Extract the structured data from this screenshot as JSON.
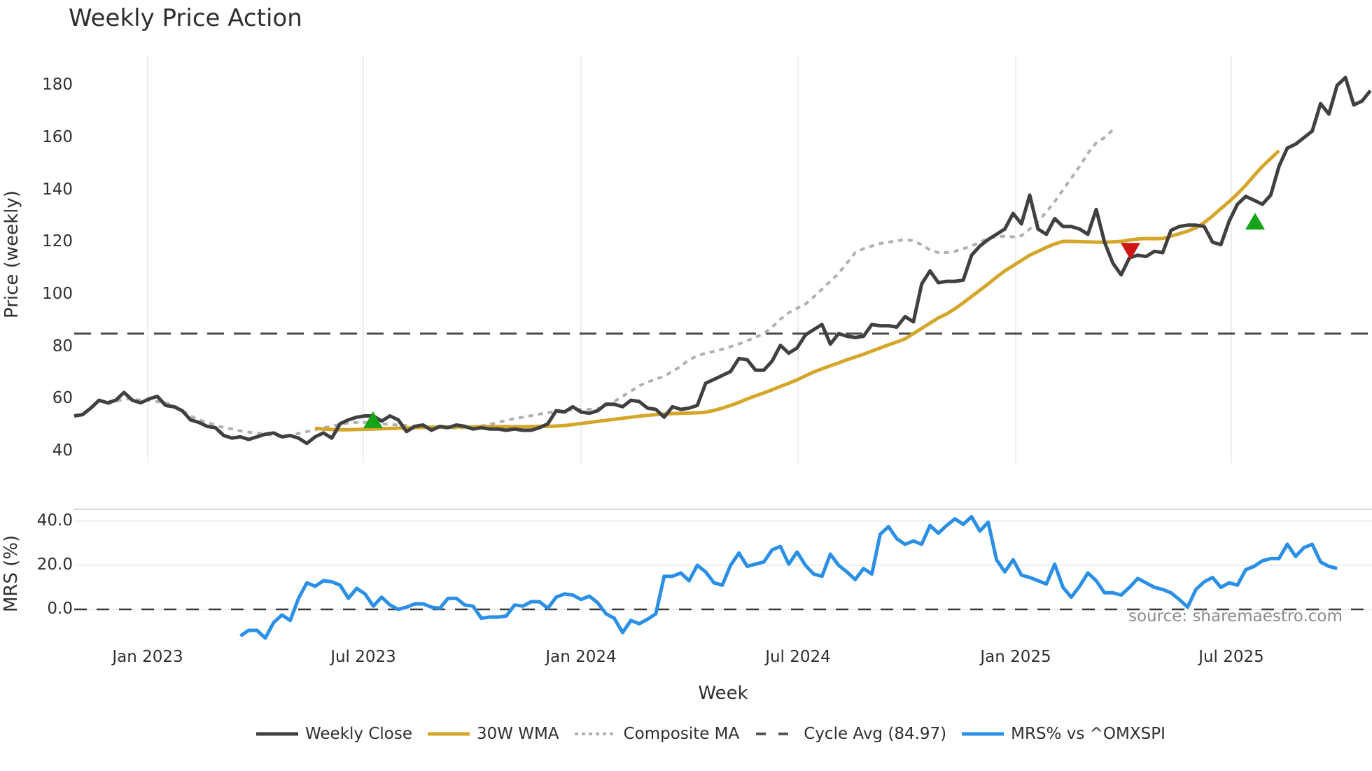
{
  "title": "Weekly Price Action",
  "source_note": "source: sharemaestro.com",
  "price_panel": {
    "ylabel": "Price (weekly)",
    "yticks": [
      "180",
      "160",
      "140",
      "120",
      "100",
      "80",
      "60",
      "40"
    ],
    "cycle_avg_value": 84.97
  },
  "mrs_panel": {
    "ylabel": "MRS (%)",
    "yticks": [
      "40.0",
      "20.0",
      "0.0"
    ]
  },
  "xaxis": {
    "title": "Week",
    "ticks": [
      "Jan 2023",
      "Jul 2023",
      "Jan 2024",
      "Jul 2024",
      "Jan 2025",
      "Jul 2025"
    ]
  },
  "legend": [
    {
      "label": "Weekly Close",
      "color": "#404040",
      "style": "solid"
    },
    {
      "label": "30W WMA",
      "color": "#d4a62a",
      "style": "solid"
    },
    {
      "label": "Composite MA",
      "color": "#b0b0b0",
      "style": "dotted"
    },
    {
      "label": "Cycle Avg (84.97)",
      "color": "#555555",
      "style": "dashed"
    },
    {
      "label": "MRS% vs ^OMXSPI",
      "color": "#2b8fe6",
      "style": "solid"
    }
  ],
  "chart_data": [
    {
      "type": "line",
      "title": "Weekly Price Action",
      "xlabel": "Week",
      "ylabel": "Price (weekly)",
      "ylim": [
        36,
        190
      ],
      "grid": true,
      "legend_position": "bottom",
      "x_ticks": [
        "Jan 2023",
        "Jul 2023",
        "Jan 2024",
        "Jul 2024",
        "Jan 2025",
        "Jul 2025"
      ],
      "x_start": "Oct 2022",
      "x_step": "1 week",
      "series": [
        {
          "name": "Weekly Close",
          "color": "#404040",
          "values": [
            53.5,
            54,
            56.5,
            59.5,
            58.5,
            59.5,
            62.5,
            59.5,
            58.5,
            60,
            61,
            57.5,
            57,
            55.5,
            52,
            51,
            49.5,
            49,
            46,
            45,
            45.5,
            44.5,
            45.5,
            46.5,
            47,
            45.5,
            46,
            45,
            43,
            45.5,
            47,
            45,
            50.5,
            52,
            53,
            53.5,
            53.5,
            51.5,
            53.5,
            52,
            47.5,
            49.5,
            50,
            48,
            49.5,
            49,
            50,
            49.5,
            48.5,
            49,
            48.5,
            48.5,
            48,
            48.5,
            48,
            48,
            49,
            50.5,
            55.5,
            55,
            57,
            55,
            54.5,
            55.5,
            58,
            58,
            57,
            59.5,
            59,
            56.5,
            56,
            53,
            57,
            56,
            56.5,
            57.5,
            66,
            67.5,
            69,
            70.5,
            75.5,
            75,
            71,
            71,
            74.5,
            80.5,
            77.5,
            79.5,
            84.5,
            86.5,
            88.5,
            81,
            85,
            84,
            83.5,
            84,
            88.5,
            88,
            88,
            87.5,
            91.5,
            89.5,
            104,
            109,
            104.5,
            105,
            105,
            105.5,
            115,
            118.5,
            121,
            123,
            125,
            131,
            127,
            138,
            125,
            123,
            129,
            126,
            126,
            125,
            123,
            132.5,
            120,
            112,
            107.5,
            114,
            115,
            114.5,
            116.5,
            116,
            124.5,
            126,
            126.5,
            126.5,
            126,
            120,
            119,
            128,
            134.5,
            137.5,
            136,
            134.5,
            138,
            149,
            156,
            157.5,
            160,
            162.5,
            173,
            169,
            180,
            183,
            172.5,
            174,
            178
          ]
        },
        {
          "name": "30W WMA",
          "color": "#d4a62a",
          "start_index": 29,
          "values": [
            48.8,
            48.5,
            48.3,
            48.2,
            48.2,
            48.3,
            48.4,
            48.5,
            48.6,
            48.7,
            48.8,
            48.9,
            49,
            49.1,
            49.2,
            49.2,
            49.3,
            49.3,
            49.3,
            49.3,
            49.4,
            49.4,
            49.4,
            49.4,
            49.4,
            49.4,
            49.4,
            49.5,
            49.5,
            49.6,
            49.8,
            50.2,
            50.6,
            51,
            51.4,
            51.8,
            52.2,
            52.6,
            53,
            53.4,
            53.7,
            54,
            54.2,
            54.4,
            54.5,
            54.6,
            54.7,
            54.9,
            55.6,
            56.5,
            57.5,
            58.7,
            60,
            61.2,
            62.3,
            63.5,
            64.8,
            66,
            67.3,
            68.8,
            70.3,
            71.5,
            72.7,
            73.8,
            75,
            76,
            77.1,
            78.3,
            79.5,
            80.7,
            81.8,
            83,
            85,
            87,
            89,
            91,
            92.5,
            94.5,
            96.8,
            99.2,
            101.6,
            104,
            106.6,
            109,
            111,
            113,
            115,
            116.5,
            118,
            119.3,
            120.3,
            120.3,
            120.2,
            120.1,
            120,
            120,
            120.1,
            120.3,
            120.8,
            121.2,
            121.4,
            121.3,
            121.4,
            122.3,
            123.2,
            124.2,
            125.5,
            127.5,
            130,
            132.8,
            135.5,
            138.5,
            141.8,
            145.5,
            149,
            152,
            155
          ]
        },
        {
          "name": "Composite MA",
          "color": "#b0b0b0",
          "start_index": 4,
          "values": [
            58,
            59,
            60,
            60,
            59.5,
            59.5,
            59,
            58.5,
            57.5,
            55.5,
            53.5,
            52,
            51,
            50,
            49,
            48.5,
            47.8,
            47.3,
            47,
            46.5,
            46,
            45.5,
            46,
            46.8,
            47.5,
            48.2,
            49,
            49.5,
            50.3,
            50.8,
            51,
            51,
            50.8,
            50.5,
            50.2,
            50,
            49.8,
            49.6,
            49.4,
            49.2,
            49,
            48.9,
            48.9,
            49,
            49.2,
            49.6,
            50.3,
            51,
            51.8,
            52.5,
            53,
            53.6,
            54.2,
            54.7,
            55.2,
            55.6,
            55.8,
            56,
            56,
            56.2,
            57.5,
            59,
            61,
            63,
            65,
            66.5,
            67.5,
            68.8,
            70.5,
            72.5,
            75,
            76.5,
            77.5,
            78.2,
            79,
            80,
            81,
            82.3,
            83.6,
            85,
            87.5,
            90.5,
            93,
            94.7,
            96.3,
            99,
            102,
            105,
            108,
            112,
            116,
            117.5,
            118.5,
            119.5,
            120,
            120.5,
            121,
            120.5,
            119,
            117,
            116,
            116,
            116.5,
            117.5,
            118.5,
            120,
            121.5,
            122,
            122.3,
            122,
            122.5,
            125,
            128,
            131.5,
            135.5,
            140,
            144.5,
            149,
            154,
            158,
            160,
            163
          ]
        }
      ],
      "hlines": [
        {
          "name": "Cycle Avg (84.97)",
          "y": 84.97,
          "style": "dashed"
        }
      ],
      "markers": [
        {
          "type": "buy",
          "shape": "triangle-up",
          "color": "#17a317",
          "x_label": "Jul 2023",
          "y": 51.5
        },
        {
          "type": "sell",
          "shape": "triangle-down",
          "color": "#d01515",
          "x_label": "Apr 2025",
          "y": 117
        },
        {
          "type": "buy",
          "shape": "triangle-up",
          "color": "#17a317",
          "x_label": "Aug 2025",
          "y": 127.5
        }
      ]
    },
    {
      "type": "line",
      "title": "",
      "xlabel": "Week",
      "ylabel": "MRS (%)",
      "ylim": [
        -14,
        46
      ],
      "grid": true,
      "series": [
        {
          "name": "MRS% vs ^OMXSPI",
          "color": "#2b8fe6",
          "start_index": 20,
          "values": [
            -12,
            -9.5,
            -9.5,
            -13,
            -6,
            -2.5,
            -5,
            5,
            12,
            10.5,
            13,
            12.5,
            11,
            5,
            9.5,
            7,
            1.5,
            5.5,
            2,
            0,
            1,
            2.5,
            2.5,
            1,
            0.5,
            5,
            5,
            2,
            1.5,
            -4,
            -3.5,
            -3.5,
            -3,
            2,
            1.5,
            3.5,
            3.5,
            0.5,
            5.5,
            7,
            6.5,
            4.5,
            6,
            3,
            -2,
            -4,
            -10.5,
            -5,
            -6.5,
            -4.5,
            -2,
            15,
            15,
            16.5,
            13,
            20,
            17,
            12,
            11,
            20,
            25.5,
            19.5,
            20.5,
            21.5,
            27,
            28.5,
            20.5,
            26,
            20,
            16,
            15,
            25,
            20,
            17,
            13.5,
            18.5,
            16,
            34,
            37.5,
            32,
            29.5,
            31,
            29.5,
            38,
            34.5,
            38,
            41,
            38.5,
            42,
            35.5,
            39.5,
            22.5,
            17,
            22.5,
            15.5,
            14.5,
            13,
            11.5,
            20.5,
            10,
            5.5,
            10.5,
            16.5,
            13,
            7.5,
            7.5,
            6.5,
            10,
            14,
            12,
            10,
            9,
            7.5,
            4.5,
            1,
            9,
            12.5,
            14.5,
            10,
            12,
            11,
            18,
            19.5,
            22,
            23,
            23,
            29.5,
            24,
            28,
            29.5,
            21.5,
            19.5,
            18.5
          ]
        }
      ],
      "hlines": [
        {
          "name": "zero",
          "y": 0,
          "style": "dashed"
        }
      ]
    }
  ]
}
